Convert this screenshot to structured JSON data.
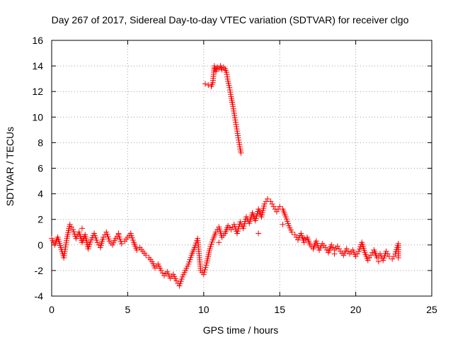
{
  "chart_data": {
    "type": "scatter",
    "title": "Day 267 of 2017, Sidereal Day-to-day VTEC variation (SDTVAR) for receiver clgo",
    "xlabel": "GPS time / hours",
    "ylabel": "SDTVAR / TECUs",
    "xlim": [
      0,
      25
    ],
    "ylim": [
      -4,
      16
    ],
    "xticks": [
      "0",
      "5",
      "10",
      "15",
      "20",
      "25"
    ],
    "yticks": [
      "-4",
      "-2",
      "0",
      "2",
      "4",
      "6",
      "8",
      "10",
      "12",
      "14",
      "16"
    ],
    "grid": true,
    "marker": "+",
    "color": "#ff0000",
    "series": [
      {
        "name": "sdtvar",
        "points": [
          [
            0.0,
            0.5
          ],
          [
            0.2,
            0.0
          ],
          [
            0.4,
            0.6
          ],
          [
            0.6,
            -0.2
          ],
          [
            0.8,
            -1.0
          ],
          [
            1.0,
            0.5
          ],
          [
            1.2,
            1.6
          ],
          [
            1.4,
            1.2
          ],
          [
            1.6,
            0.5
          ],
          [
            1.8,
            1.0
          ],
          [
            2.0,
            0.2
          ],
          [
            2.2,
            0.8
          ],
          [
            2.4,
            -0.3
          ],
          [
            2.6,
            0.4
          ],
          [
            2.8,
            0.9
          ],
          [
            3.0,
            0.2
          ],
          [
            3.2,
            -0.2
          ],
          [
            3.4,
            0.6
          ],
          [
            3.6,
            1.0
          ],
          [
            3.8,
            0.3
          ],
          [
            4.0,
            0.0
          ],
          [
            4.2,
            0.5
          ],
          [
            4.4,
            0.8
          ],
          [
            4.6,
            0.1
          ],
          [
            4.8,
            0.3
          ],
          [
            5.0,
            0.6
          ],
          [
            5.2,
            0.9
          ],
          [
            5.4,
            0.2
          ],
          [
            5.6,
            -0.4
          ],
          [
            5.8,
            -0.2
          ],
          [
            6.0,
            -0.5
          ],
          [
            6.2,
            -0.8
          ],
          [
            6.4,
            -1.0
          ],
          [
            6.6,
            -1.3
          ],
          [
            6.8,
            -1.8
          ],
          [
            7.0,
            -1.5
          ],
          [
            7.2,
            -2.0
          ],
          [
            7.4,
            -2.4
          ],
          [
            7.6,
            -2.1
          ],
          [
            7.8,
            -2.6
          ],
          [
            8.0,
            -2.3
          ],
          [
            8.2,
            -2.8
          ],
          [
            8.4,
            -3.2
          ],
          [
            8.6,
            -2.5
          ],
          [
            8.8,
            -2.0
          ],
          [
            9.0,
            -1.5
          ],
          [
            9.2,
            -0.8
          ],
          [
            9.4,
            -0.2
          ],
          [
            9.6,
            0.5
          ],
          [
            9.8,
            -2.0
          ],
          [
            10.0,
            -2.3
          ],
          [
            10.2,
            -1.4
          ],
          [
            10.4,
            -0.3
          ],
          [
            10.6,
            0.4
          ],
          [
            10.8,
            1.0
          ],
          [
            11.0,
            1.4
          ],
          [
            11.2,
            0.6
          ],
          [
            11.4,
            0.9
          ],
          [
            11.6,
            1.5
          ],
          [
            11.8,
            1.2
          ],
          [
            12.0,
            1.6
          ],
          [
            12.2,
            0.9
          ],
          [
            12.4,
            1.8
          ],
          [
            12.6,
            1.3
          ],
          [
            12.8,
            2.2
          ],
          [
            13.0,
            1.7
          ],
          [
            13.2,
            2.5
          ],
          [
            13.4,
            1.9
          ],
          [
            13.6,
            2.8
          ],
          [
            13.8,
            2.2
          ],
          [
            14.0,
            3.2
          ],
          [
            14.2,
            3.6
          ],
          [
            14.4,
            3.4
          ],
          [
            14.6,
            3.0
          ],
          [
            14.8,
            2.6
          ],
          [
            15.0,
            3.0
          ],
          [
            15.2,
            2.8
          ],
          [
            15.4,
            2.2
          ],
          [
            15.6,
            1.5
          ],
          [
            15.8,
            1.0
          ],
          [
            16.0,
            0.8
          ],
          [
            16.2,
            0.4
          ],
          [
            16.4,
            0.9
          ],
          [
            16.6,
            0.2
          ],
          [
            16.8,
            0.6
          ],
          [
            17.0,
            0.0
          ],
          [
            17.2,
            -0.3
          ],
          [
            17.4,
            0.3
          ],
          [
            17.6,
            -0.4
          ],
          [
            17.8,
            0.1
          ],
          [
            18.0,
            -0.2
          ],
          [
            18.2,
            -0.6
          ],
          [
            18.4,
            0.0
          ],
          [
            18.6,
            -0.4
          ],
          [
            18.8,
            -0.1
          ],
          [
            19.0,
            -0.5
          ],
          [
            19.2,
            -0.8
          ],
          [
            19.4,
            -0.3
          ],
          [
            19.6,
            -0.7
          ],
          [
            19.8,
            -0.4
          ],
          [
            20.0,
            -0.9
          ],
          [
            20.2,
            -0.5
          ],
          [
            20.4,
            0.2
          ],
          [
            20.6,
            -0.6
          ],
          [
            20.8,
            -1.2
          ],
          [
            21.0,
            -0.8
          ],
          [
            21.2,
            -0.4
          ],
          [
            21.4,
            -1.0
          ],
          [
            21.6,
            -0.7
          ],
          [
            21.8,
            -1.2
          ],
          [
            22.0,
            -0.5
          ],
          [
            22.2,
            -0.9
          ],
          [
            22.4,
            -1.1
          ],
          [
            22.6,
            -0.7
          ],
          [
            22.8,
            0.1
          ],
          [
            22.8,
            -1.0
          ],
          [
            2.0,
            1.3
          ],
          [
            4.4,
            0.9
          ],
          [
            11.0,
            0.2
          ],
          [
            13.6,
            0.9
          ],
          [
            15.2,
            1.6
          ],
          [
            16.6,
            0.5
          ],
          [
            18.6,
            -0.7
          ],
          [
            21.5,
            -1.3
          ],
          [
            10.1,
            12.6
          ],
          [
            10.3,
            12.5
          ],
          [
            10.5,
            12.4
          ],
          [
            10.6,
            12.7
          ],
          [
            10.7,
            14.0
          ],
          [
            10.8,
            13.6
          ],
          [
            10.9,
            13.9
          ],
          [
            11.0,
            13.8
          ],
          [
            11.1,
            14.0
          ],
          [
            11.2,
            13.7
          ],
          [
            11.3,
            13.9
          ],
          [
            11.4,
            13.8
          ],
          [
            11.5,
            13.5
          ],
          [
            11.6,
            12.8
          ],
          [
            11.7,
            12.3
          ],
          [
            11.8,
            11.6
          ],
          [
            11.9,
            11.0
          ],
          [
            12.0,
            10.3
          ],
          [
            12.1,
            9.6
          ],
          [
            12.2,
            8.9
          ],
          [
            12.3,
            8.2
          ],
          [
            12.4,
            7.5
          ],
          [
            12.45,
            7.2
          ]
        ]
      }
    ]
  }
}
